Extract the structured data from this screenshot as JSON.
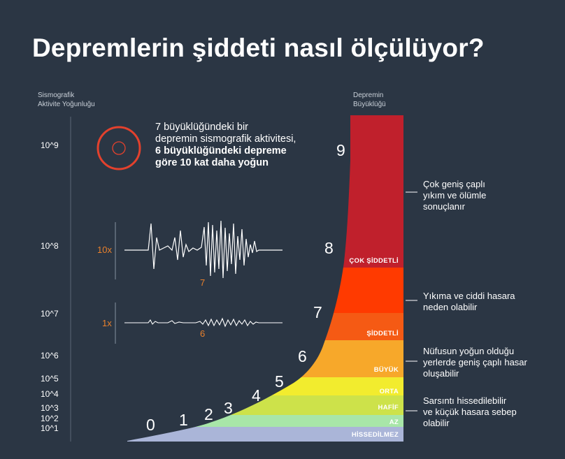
{
  "title": "Depremlerin şiddeti nasıl ölçülüyor?",
  "colors": {
    "background": "#2b3644",
    "accent_orange": "#e8802c",
    "circle_red": "#e3412d",
    "bands": [
      "#aab5d8",
      "#a8e6a8",
      "#cde24a",
      "#f2ec2e",
      "#f7a82a",
      "#f55a14",
      "#ff3a00",
      "#c0202c"
    ]
  },
  "intro": {
    "line1": "7 büyüklüğündeki bir",
    "line2": "depremin sismografik aktivitesi,",
    "line3": "6 büyüklüğündeki depreme",
    "line4": "göre 10 kat daha yoğun"
  },
  "seismogram": {
    "top_multiplier": "10x",
    "top_magnitude": "7",
    "bottom_multiplier": "1x",
    "bottom_magnitude": "6"
  },
  "chart_data": {
    "type": "area",
    "y_axis_title": [
      "Sismografik",
      "Aktivite Yoğunluğu"
    ],
    "y_axis_scale": "log",
    "y_ticks": [
      "10^1",
      "10^2",
      "10^3",
      "10^4",
      "10^5",
      "10^6",
      "10^7",
      "10^8",
      "10^9"
    ],
    "magnitude_title": [
      "Depremin",
      "Büyüklüğü"
    ],
    "magnitudes": [
      "0",
      "1",
      "2",
      "3",
      "4",
      "5",
      "6",
      "7",
      "8",
      "9"
    ],
    "bands": [
      {
        "label": "HİSSEDİLMEZ",
        "from": 0,
        "to": 2
      },
      {
        "label": "AZ",
        "from": 2,
        "to": 3
      },
      {
        "label": "HAFİF",
        "from": 3,
        "to": 4
      },
      {
        "label": "ORTA",
        "from": 4,
        "to": 5
      },
      {
        "label": "BÜYÜK",
        "from": 5,
        "to": 6
      },
      {
        "label": "ŞİDDETLİ",
        "from": 6,
        "to": 7
      },
      {
        "label": "",
        "from": 7,
        "to": 8
      },
      {
        "label": "ÇOK ŞİDDETLİ",
        "from": 8,
        "to": 9
      }
    ],
    "descriptions": [
      {
        "lines": [
          "Çok geniş çaplı",
          "yıkım ve ölümle",
          "sonuçlanır"
        ]
      },
      {
        "lines": [
          "Yıkıma ve ciddi hasara",
          "neden olabilir"
        ]
      },
      {
        "lines": [
          "Nüfusun yoğun olduğu",
          "yerlerde geniş çaplı hasar",
          "oluşabilir"
        ]
      },
      {
        "lines": [
          "Sarsıntı hissedilebilir",
          "ve küçük hasara sebep",
          "olabilir"
        ]
      }
    ]
  }
}
